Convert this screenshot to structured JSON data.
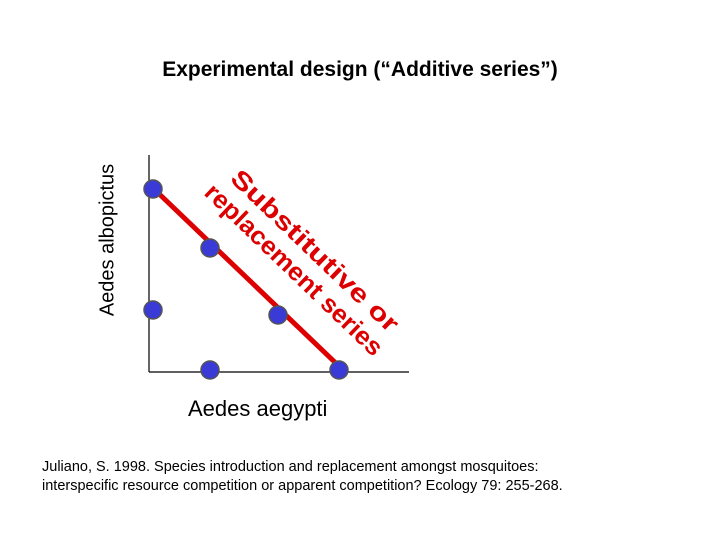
{
  "title": "Experimental design (“Additive series”)",
  "y_axis_label": "Aedes albopictus",
  "x_axis_label": "Aedes aegypti",
  "diagonal_label_line1": "Substitutive or",
  "diagonal_label_line2": "replacement series",
  "citation_line1": "Juliano, S. 1998. Species introduction and replacement amongst mosquitoes:",
  "citation_line2": "interspecific resource competition or apparent competition? Ecology 79: 255-268.",
  "colors": {
    "point_fill": "#3a3ad6",
    "point_stroke": "#555555",
    "diagonal_line": "#dd0000",
    "diagonal_text": "#dd0000",
    "axis": "#000000"
  }
}
